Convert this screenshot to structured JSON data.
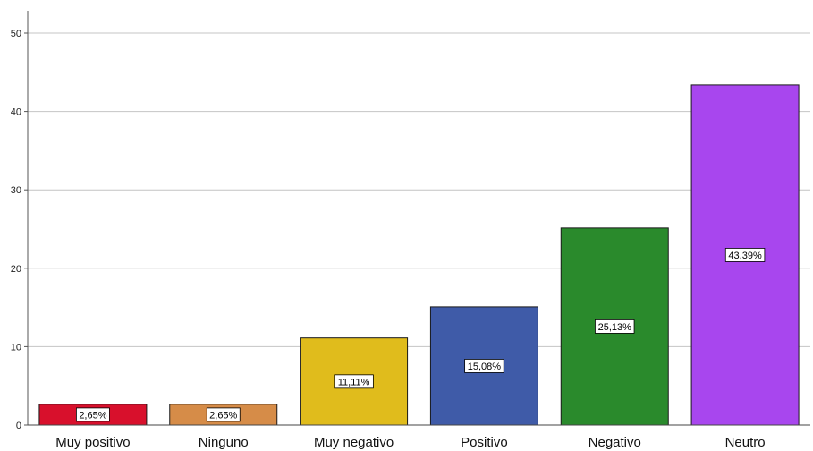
{
  "chart_data": {
    "type": "bar",
    "title": "",
    "xlabel": "",
    "ylabel": "",
    "ylim": [
      0,
      50
    ],
    "yticks": [
      0,
      10,
      20,
      30,
      40,
      50
    ],
    "grid": "horizontal",
    "categories": [
      "Muy positivo",
      "Ninguno",
      "Muy negativo",
      "Positivo",
      "Negativo",
      "Neutro"
    ],
    "values": [
      2.65,
      2.65,
      11.11,
      15.08,
      25.13,
      43.39
    ],
    "data_labels": [
      "2,65%",
      "2,65%",
      "11,11%",
      "15,08%",
      "25,13%",
      "43,39%"
    ],
    "colors": [
      "#d8102c",
      "#d68c48",
      "#e0bc1c",
      "#3f5ba8",
      "#2a8a2c",
      "#a846ee"
    ]
  }
}
